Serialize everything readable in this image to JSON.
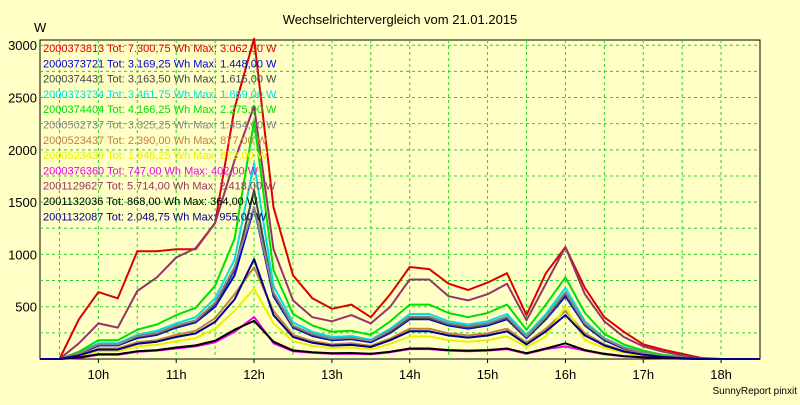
{
  "chart_data": {
    "type": "line",
    "title": "Wechselrichtervergleich vom 21.01.2015",
    "ylabel": "W",
    "xlabel": "",
    "credit": "SunnyReport pinxit",
    "ylim": [
      0,
      3050
    ],
    "yticks": [
      500,
      1000,
      1500,
      2000,
      2500,
      3000
    ],
    "xlim": [
      9.25,
      18.5
    ],
    "xticks": [
      {
        "v": 10,
        "label": "10h"
      },
      {
        "v": 11,
        "label": "11h"
      },
      {
        "v": 12,
        "label": "12h"
      },
      {
        "v": 13,
        "label": "13h"
      },
      {
        "v": 14,
        "label": "14h"
      },
      {
        "v": 15,
        "label": "15h"
      },
      {
        "v": 16,
        "label": "16h"
      },
      {
        "v": 17,
        "label": "17h"
      },
      {
        "v": 18,
        "label": "18h"
      }
    ],
    "grid": true,
    "legend_position": "top-left",
    "x": [
      9.25,
      9.5,
      9.75,
      10,
      10.25,
      10.5,
      10.75,
      11,
      11.25,
      11.5,
      11.75,
      12,
      12.25,
      12.5,
      12.75,
      13,
      13.25,
      13.5,
      13.75,
      14,
      14.25,
      14.5,
      14.75,
      15,
      15.25,
      15.5,
      15.75,
      16,
      16.25,
      16.5,
      16.75,
      17,
      17.25,
      17.5,
      17.75,
      18,
      18.25,
      18.5
    ],
    "series": [
      {
        "label": "2000373813 Tot: 7.300,75 Wh Max: 3.062,00 W",
        "color": "#dd0000",
        "values": [
          0,
          0,
          380,
          640,
          580,
          1030,
          1030,
          1050,
          1050,
          1300,
          2400,
          3062,
          1450,
          800,
          580,
          480,
          520,
          400,
          620,
          880,
          860,
          720,
          660,
          730,
          820,
          420,
          820,
          1070,
          680,
          400,
          260,
          140,
          90,
          50,
          10,
          0,
          0,
          0
        ]
      },
      {
        "label": "2000373721 Tot: 3.169,25 Wh Max: 1.448,00 W",
        "color": "#0000dd",
        "values": [
          0,
          0,
          50,
          130,
          130,
          200,
          230,
          300,
          350,
          500,
          800,
          1448,
          600,
          300,
          220,
          180,
          190,
          160,
          250,
          380,
          380,
          320,
          290,
          320,
          380,
          200,
          380,
          600,
          320,
          180,
          100,
          60,
          30,
          15,
          0,
          0,
          0,
          0
        ]
      },
      {
        "label": "2000374431 Tot: 3.163,50 Wh Max: 1.615,00 W",
        "color": "#444444",
        "values": [
          0,
          0,
          55,
          140,
          140,
          210,
          240,
          310,
          360,
          520,
          850,
          1615,
          620,
          310,
          230,
          190,
          200,
          170,
          260,
          390,
          390,
          330,
          300,
          330,
          390,
          210,
          390,
          620,
          330,
          190,
          105,
          60,
          30,
          15,
          0,
          0,
          0,
          0
        ]
      },
      {
        "label": "2000373734 Tot: 3.461,75 Wh Max: 1.869,00 W",
        "color": "#00e0e0",
        "values": [
          0,
          0,
          60,
          150,
          150,
          230,
          270,
          340,
          400,
          580,
          950,
          1869,
          700,
          350,
          260,
          210,
          220,
          185,
          290,
          430,
          430,
          360,
          330,
          360,
          430,
          230,
          430,
          680,
          360,
          200,
          115,
          65,
          35,
          15,
          0,
          0,
          0,
          0
        ]
      },
      {
        "label": "2000374404 Tot: 4.166,25 Wh Max: 2.275,00 W",
        "color": "#00e000",
        "values": [
          0,
          0,
          70,
          180,
          180,
          280,
          330,
          420,
          490,
          700,
          1150,
          2275,
          850,
          430,
          320,
          260,
          270,
          230,
          360,
          520,
          520,
          440,
          400,
          440,
          520,
          280,
          520,
          780,
          440,
          240,
          140,
          80,
          40,
          20,
          0,
          0,
          0,
          0
        ]
      },
      {
        "label": "2000502737 Tot: 3.325,25 Wh Max: 1.454,00 W",
        "color": "#888888",
        "values": [
          0,
          0,
          55,
          140,
          140,
          220,
          250,
          320,
          370,
          540,
          880,
          1454,
          640,
          320,
          240,
          195,
          205,
          175,
          275,
          405,
          405,
          340,
          315,
          340,
          405,
          215,
          405,
          640,
          340,
          195,
          110,
          62,
          32,
          15,
          0,
          0,
          0,
          0
        ]
      },
      {
        "label": "2000523437 Tot: 2.390,00 Wh Max: 877,00 W",
        "color": "#c08040",
        "values": [
          0,
          0,
          40,
          100,
          100,
          160,
          180,
          230,
          270,
          390,
          620,
          877,
          460,
          230,
          170,
          140,
          150,
          125,
          195,
          290,
          290,
          245,
          225,
          245,
          290,
          155,
          290,
          460,
          245,
          140,
          80,
          45,
          22,
          10,
          0,
          0,
          0,
          0
        ]
      },
      {
        "label": "2000523439 Tot: 1.646,25 Wh Max: 673,00 W",
        "color": "#eeee00",
        "values": [
          0,
          0,
          30,
          75,
          75,
          120,
          135,
          170,
          200,
          290,
          460,
          673,
          340,
          170,
          125,
          105,
          110,
          92,
          145,
          215,
          215,
          180,
          165,
          180,
          215,
          115,
          215,
          500,
          180,
          105,
          60,
          34,
          17,
          8,
          0,
          0,
          0,
          0
        ]
      },
      {
        "label": "2000376360 Tot: 747,00 Wh Max: 402,00 W",
        "color": "#ee00ee",
        "values": [
          0,
          0,
          10,
          40,
          40,
          70,
          80,
          100,
          120,
          160,
          260,
          402,
          150,
          75,
          60,
          50,
          52,
          45,
          65,
          95,
          95,
          80,
          75,
          80,
          95,
          50,
          95,
          120,
          80,
          45,
          25,
          15,
          8,
          4,
          0,
          0,
          0,
          0
        ]
      },
      {
        "label": "2001129627 Tot: 5.714,00 Wh Max: 2.418,00 W",
        "color": "#993366",
        "values": [
          0,
          0,
          150,
          340,
          300,
          650,
          780,
          970,
          1060,
          1300,
          1900,
          2418,
          1050,
          560,
          400,
          360,
          420,
          340,
          500,
          760,
          760,
          600,
          560,
          620,
          720,
          370,
          720,
          1070,
          620,
          360,
          210,
          120,
          70,
          35,
          5,
          0,
          0,
          0
        ]
      },
      {
        "label": "2001132036 Tot: 868,00 Wh Max: 364,00 W",
        "color": "#000000",
        "values": [
          0,
          0,
          15,
          45,
          45,
          75,
          85,
          110,
          130,
          175,
          280,
          364,
          165,
          82,
          65,
          55,
          57,
          50,
          70,
          100,
          100,
          85,
          80,
          85,
          100,
          55,
          100,
          150,
          85,
          50,
          28,
          16,
          8,
          4,
          0,
          0,
          0,
          0
        ]
      },
      {
        "label": "2001132087 Tot: 2.048,75 Wh Max: 955,00 W",
        "color": "#000088",
        "values": [
          0,
          0,
          35,
          90,
          90,
          145,
          165,
          210,
          245,
          355,
          570,
          955,
          420,
          210,
          155,
          128,
          135,
          115,
          180,
          265,
          265,
          225,
          205,
          225,
          265,
          140,
          265,
          420,
          225,
          130,
          72,
          40,
          20,
          9,
          0,
          0,
          0,
          0
        ]
      }
    ]
  }
}
